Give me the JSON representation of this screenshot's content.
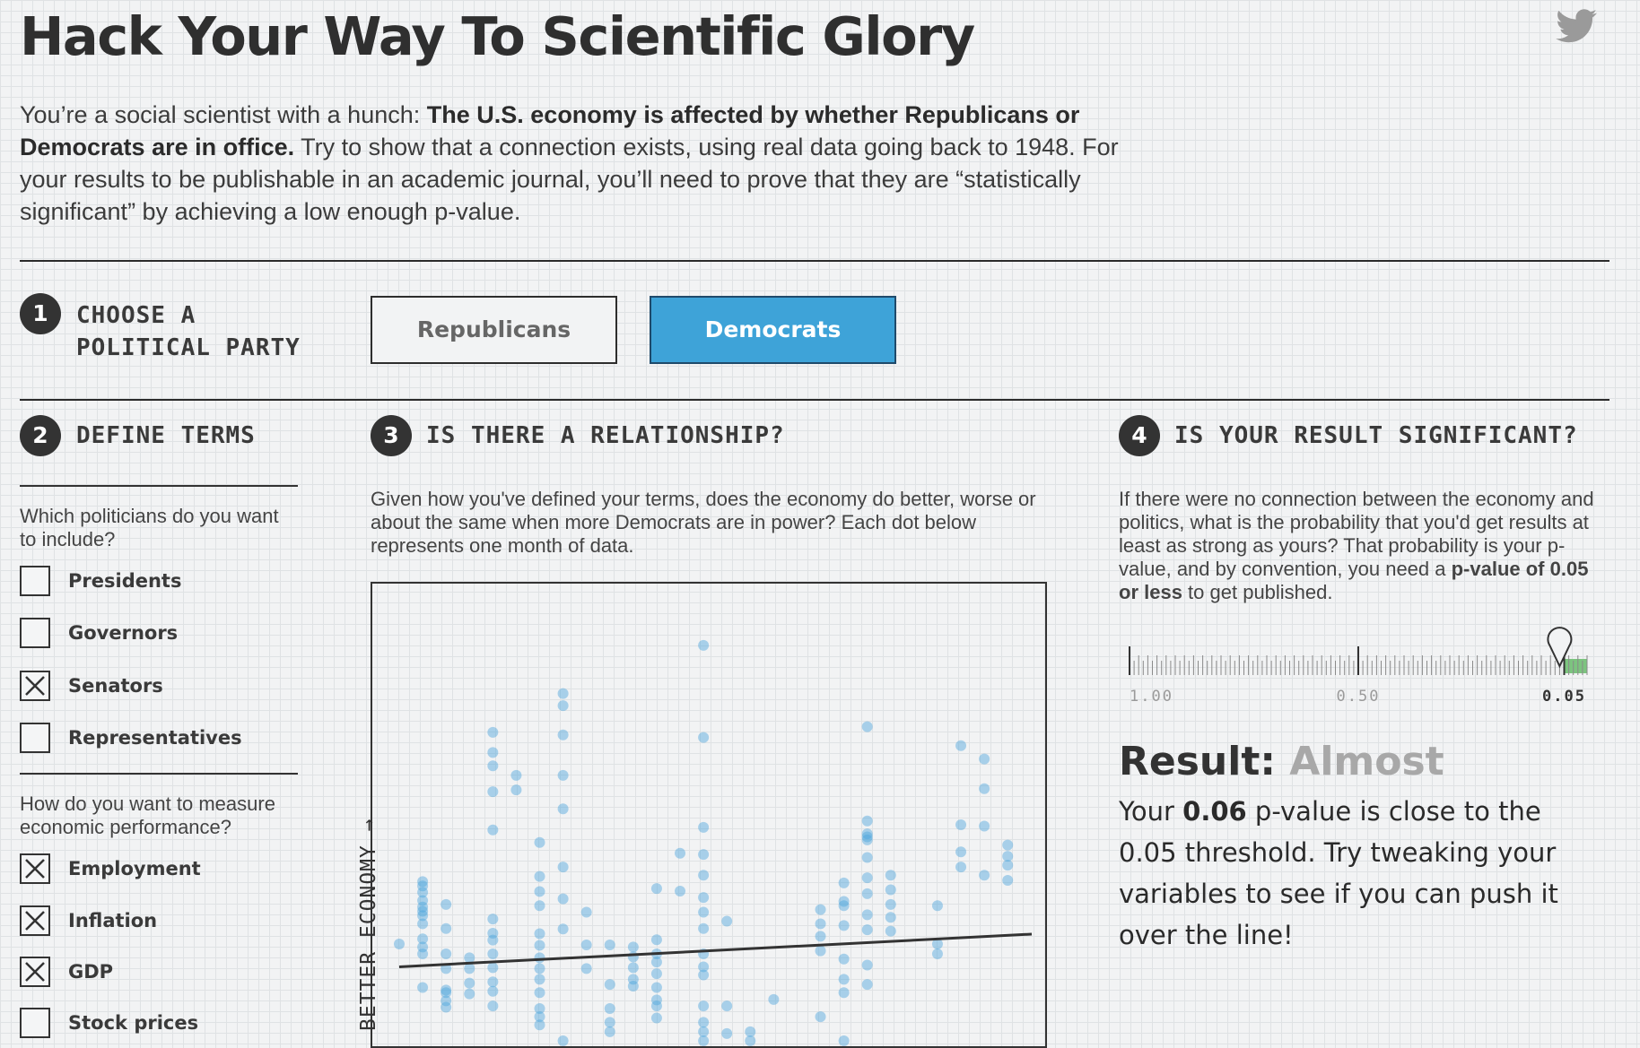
{
  "header": {
    "title": "Hack Your Way To Scientific Glory",
    "intro_lead": "You’re a social scientist with a hunch: ",
    "intro_bold": "The U.S. economy is affected by whether Republicans or Democrats are in office.",
    "intro_rest": " Try to show that a connection exists, using real data going back to 1948. For your results to be publishable in an academic journal, you’ll need to prove that they are “statistically significant” by achieving a low enough p-value."
  },
  "icons": {
    "share": "twitter-icon",
    "checked": "x-mark-icon",
    "marker": "map-pin-icon"
  },
  "colors": {
    "accent": "#3ea3d8",
    "dots": "#4ba3dc",
    "significant": "#7cc47f",
    "grid": "#dfe2e4"
  },
  "step1": {
    "number": "1",
    "title_line1": "CHOOSE A",
    "title_line2": "POLITICAL PARTY",
    "options": [
      "Republicans",
      "Democrats"
    ],
    "selected": "Democrats"
  },
  "step2": {
    "number": "2",
    "title": "DEFINE TERMS",
    "politicians_question": "Which politicians do you want to include?",
    "politicians": [
      {
        "label": "Presidents",
        "checked": false
      },
      {
        "label": "Governors",
        "checked": false
      },
      {
        "label": "Senators",
        "checked": true
      },
      {
        "label": "Representatives",
        "checked": false
      }
    ],
    "economy_question": "How do you want to measure economic performance?",
    "measures": [
      {
        "label": "Employment",
        "checked": true
      },
      {
        "label": "Inflation",
        "checked": true
      },
      {
        "label": "GDP",
        "checked": true
      },
      {
        "label": "Stock prices",
        "checked": false
      }
    ]
  },
  "step3": {
    "number": "3",
    "title": "IS THERE A RELATIONSHIP?",
    "description": "Given how you've defined your terms, does the economy do better, worse or about the same when more Democrats are in power? Each dot below represents one month of data.",
    "ylabel": "BETTER ECONOMY →"
  },
  "chart_data": {
    "type": "scatter",
    "title": "",
    "xlabel": "",
    "ylabel": "BETTER ECONOMY →",
    "xlim": [
      0,
      100
    ],
    "ylim": [
      0,
      100
    ],
    "trend_line": {
      "x": [
        0,
        100
      ],
      "y": [
        17.2,
        24.8
      ]
    },
    "points": [
      [
        0,
        22.5
      ],
      [
        3.7,
        27.2
      ],
      [
        3.7,
        29.1
      ],
      [
        3.7,
        30.1
      ],
      [
        3.7,
        31.1
      ],
      [
        3.7,
        32.6
      ],
      [
        3.7,
        34.5
      ],
      [
        3.7,
        36
      ],
      [
        3.7,
        37
      ],
      [
        3.7,
        23.7
      ],
      [
        3.7,
        21.8
      ],
      [
        3.7,
        20.2
      ],
      [
        3.7,
        12.4
      ],
      [
        7.4,
        31.7
      ],
      [
        7.4,
        26.1
      ],
      [
        7.4,
        20.2
      ],
      [
        7.4,
        16.8
      ],
      [
        7.4,
        11.2
      ],
      [
        7.4,
        7.8
      ],
      [
        7.4,
        9.3
      ],
      [
        7.4,
        11.8
      ],
      [
        11.1,
        19.3
      ],
      [
        11.1,
        16.8
      ],
      [
        11.1,
        13.4
      ],
      [
        11.1,
        10.9
      ],
      [
        14.8,
        71.7
      ],
      [
        14.8,
        67
      ],
      [
        14.8,
        63.9
      ],
      [
        14.8,
        57.9
      ],
      [
        14.8,
        49
      ],
      [
        14.8,
        28.3
      ],
      [
        14.8,
        25
      ],
      [
        14.8,
        23.4
      ],
      [
        14.8,
        20.2
      ],
      [
        14.8,
        17
      ],
      [
        14.8,
        13.7
      ],
      [
        14.8,
        11.5
      ],
      [
        14.8,
        8.1
      ],
      [
        18.5,
        61.7
      ],
      [
        18.5,
        58.3
      ],
      [
        22.2,
        46.1
      ],
      [
        22.2,
        38.2
      ],
      [
        22.2,
        34.7
      ],
      [
        22.2,
        31.4
      ],
      [
        22.2,
        24.9
      ],
      [
        22.2,
        22.2
      ],
      [
        22.2,
        19.3
      ],
      [
        22.2,
        16.8
      ],
      [
        22.2,
        14.3
      ],
      [
        22.2,
        11.2
      ],
      [
        22.2,
        7.5
      ],
      [
        22.2,
        5.6
      ],
      [
        22.2,
        3.7
      ],
      [
        25.9,
        80.7
      ],
      [
        25.9,
        77.9
      ],
      [
        25.9,
        71.1
      ],
      [
        25.9,
        61.7
      ],
      [
        25.9,
        53.9
      ],
      [
        25.9,
        40.4
      ],
      [
        25.9,
        33
      ],
      [
        25.9,
        26
      ],
      [
        25.9,
        0
      ],
      [
        29.6,
        29.9
      ],
      [
        29.6,
        22.3
      ],
      [
        29.6,
        16.8
      ],
      [
        33.3,
        22.3
      ],
      [
        33.3,
        13.1
      ],
      [
        33.3,
        7.5
      ],
      [
        33.3,
        4.3
      ],
      [
        33.3,
        2.1
      ],
      [
        37,
        21.8
      ],
      [
        37,
        19.5
      ],
      [
        37,
        17
      ],
      [
        37,
        14.3
      ],
      [
        37,
        12.7
      ],
      [
        40.7,
        35.4
      ],
      [
        40.7,
        23.5
      ],
      [
        40.7,
        20.2
      ],
      [
        40.7,
        18.3
      ],
      [
        40.7,
        15.6
      ],
      [
        40.7,
        12.4
      ],
      [
        40.7,
        9.5
      ],
      [
        40.7,
        8.1
      ],
      [
        40.7,
        5.3
      ],
      [
        44.4,
        43.6
      ],
      [
        44.4,
        34.8
      ],
      [
        48.1,
        91.9
      ],
      [
        48.1,
        70.5
      ],
      [
        48.1,
        49.6
      ],
      [
        48.1,
        43.3
      ],
      [
        48.1,
        38.5
      ],
      [
        48.1,
        33.3
      ],
      [
        48.1,
        29.9
      ],
      [
        48.1,
        26.1
      ],
      [
        48.1,
        20.2
      ],
      [
        48.1,
        17.2
      ],
      [
        48.1,
        15.3
      ],
      [
        48.1,
        8.1
      ],
      [
        48.1,
        4.3
      ],
      [
        48.1,
        2.1
      ],
      [
        48.1,
        0
      ],
      [
        51.8,
        27.8
      ],
      [
        51.8,
        8.1
      ],
      [
        51.8,
        1.7
      ],
      [
        55.5,
        2.1
      ],
      [
        55.5,
        0
      ],
      [
        59.2,
        9.6
      ],
      [
        66.6,
        30.5
      ],
      [
        66.6,
        27.2
      ],
      [
        66.6,
        24.3
      ],
      [
        66.6,
        20.9
      ],
      [
        66.6,
        5.6
      ],
      [
        70.3,
        36.7
      ],
      [
        70.3,
        32.4
      ],
      [
        70.3,
        31.4
      ],
      [
        70.3,
        26.8
      ],
      [
        70.3,
        19
      ],
      [
        70.3,
        14.3
      ],
      [
        70.3,
        11.2
      ],
      [
        70.3,
        0
      ],
      [
        74,
        73
      ],
      [
        74,
        51.1
      ],
      [
        74,
        48.1
      ],
      [
        74,
        47.4
      ],
      [
        74,
        46.7
      ],
      [
        74,
        42.6
      ],
      [
        74,
        37.9
      ],
      [
        74,
        34.2
      ],
      [
        74,
        29.3
      ],
      [
        74,
        25.8
      ],
      [
        74,
        17.6
      ],
      [
        74,
        13.1
      ],
      [
        77.7,
        38.5
      ],
      [
        77.7,
        35.1
      ],
      [
        77.7,
        31.7
      ],
      [
        77.7,
        28.7
      ],
      [
        77.7,
        25.5
      ],
      [
        85.1,
        31.4
      ],
      [
        85.1,
        22.5
      ],
      [
        85.1,
        20.2
      ],
      [
        88.8,
        68.6
      ],
      [
        88.8,
        50.2
      ],
      [
        88.8,
        43.9
      ],
      [
        88.8,
        40.4
      ],
      [
        92.5,
        65.5
      ],
      [
        92.5,
        58.6
      ],
      [
        92.5,
        49.9
      ],
      [
        92.5,
        38.5
      ],
      [
        96.2,
        45.5
      ],
      [
        96.2,
        42.9
      ],
      [
        96.2,
        40.8
      ],
      [
        96.2,
        37.3
      ]
    ]
  },
  "step4": {
    "number": "4",
    "title": "IS YOUR RESULT SIGNIFICANT?",
    "desc_main": "If there were no connection between the economy and politics, what is the probability that you'd get results at least as strong as yours? That probability is your p-value, and by convention, you need a ",
    "desc_bold": "p-value of 0.05 or less",
    "desc_end": " to get published.",
    "scale_labels": [
      "1.00",
      "0.50",
      "0.05"
    ],
    "p_value": 0.06,
    "threshold": 0.05,
    "result_label": "Result:",
    "result_verdict": "Almost",
    "body_pre": "Your ",
    "body_value": "0.06",
    "body_post": " p-value is close to the 0.05 threshold. Try tweaking your variables to see if you can push it over the line!"
  }
}
